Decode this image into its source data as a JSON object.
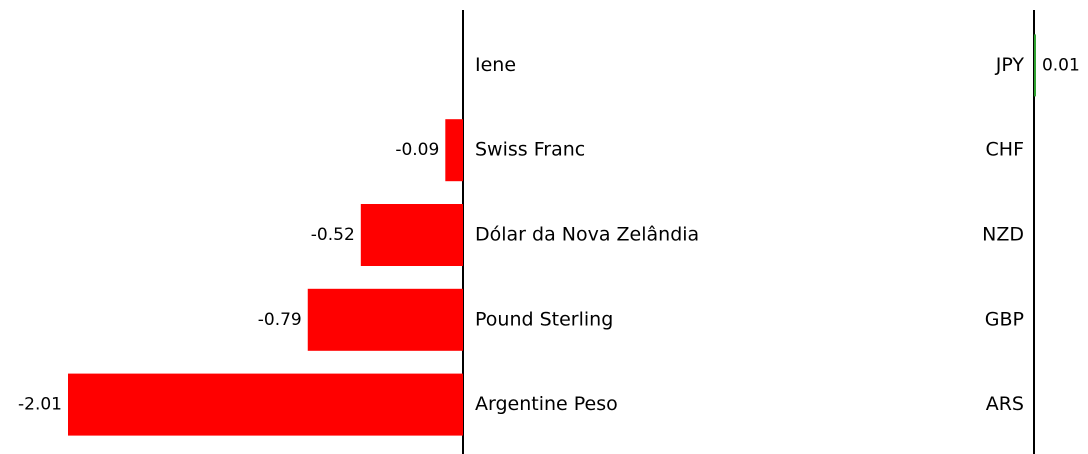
{
  "chart_data": {
    "type": "diverging-bar",
    "categories": [
      "Iene",
      "Swiss Franc",
      "Dólar da Nova Zelândia",
      "Pound Sterling",
      "Argentine Peso"
    ],
    "codes": [
      "JPY",
      "CHF",
      "NZD",
      "GBP",
      "ARS"
    ],
    "values": [
      0.01,
      -0.09,
      -0.52,
      -0.79,
      -2.01
    ],
    "negative_color": "#ff0000",
    "positive_color": "#2ca02c"
  }
}
